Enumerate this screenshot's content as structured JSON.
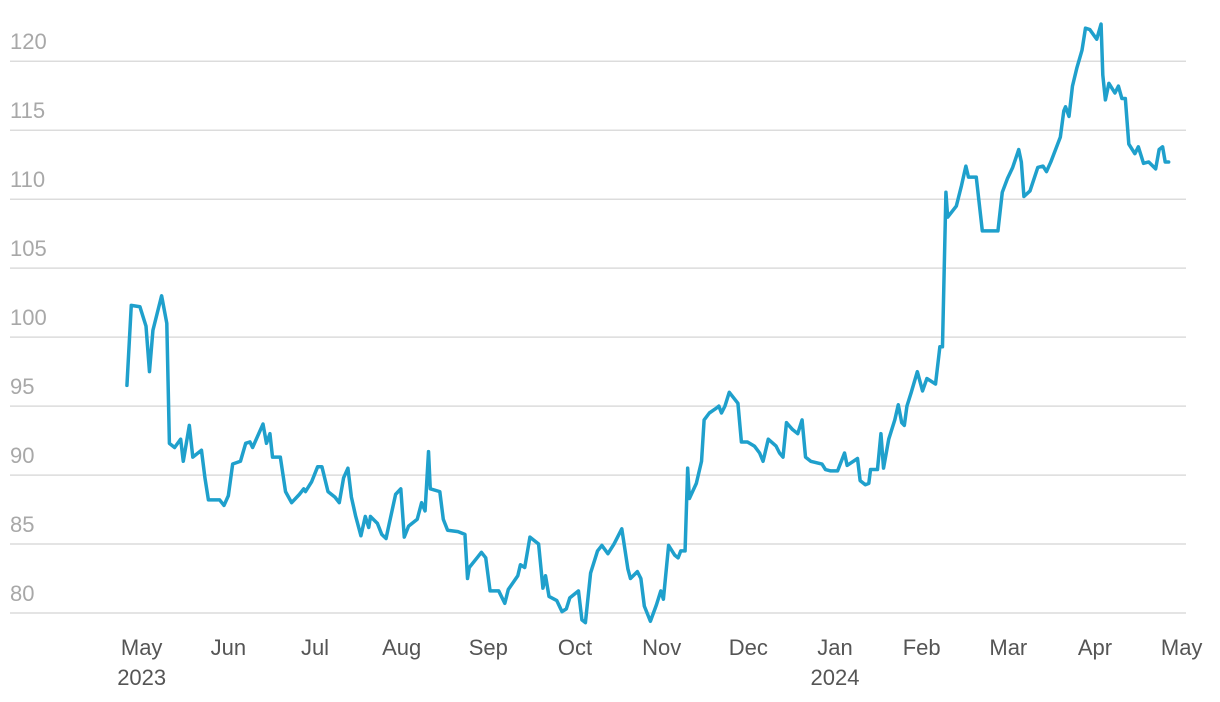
{
  "chart_data": {
    "type": "line",
    "color": "#1fa0cc",
    "grid": true,
    "xlim": [
      -0.25,
      12.05
    ],
    "ylim": [
      80,
      123.5
    ],
    "yticks": [
      80,
      85,
      90,
      95,
      100,
      105,
      110,
      115,
      120
    ],
    "xticks": [
      {
        "value": 0,
        "label": "May"
      },
      {
        "value": 1,
        "label": "Jun"
      },
      {
        "value": 2,
        "label": "Jul"
      },
      {
        "value": 3,
        "label": "Aug"
      },
      {
        "value": 4,
        "label": "Sep"
      },
      {
        "value": 5,
        "label": "Oct"
      },
      {
        "value": 6,
        "label": "Nov"
      },
      {
        "value": 7,
        "label": "Dec"
      },
      {
        "value": 8,
        "label": "Jan"
      },
      {
        "value": 9,
        "label": "Feb"
      },
      {
        "value": 10,
        "label": "Mar"
      },
      {
        "value": 11,
        "label": "Apr"
      },
      {
        "value": 12,
        "label": "May"
      }
    ],
    "year_labels": [
      {
        "value": 0,
        "label": "2023"
      },
      {
        "value": 8,
        "label": "2024"
      }
    ],
    "x": [
      -0.17,
      -0.12,
      -0.02,
      0.05,
      0.09,
      0.13,
      0.23,
      0.29,
      0.32,
      0.38,
      0.45,
      0.48,
      0.55,
      0.59,
      0.69,
      0.73,
      0.77,
      0.9,
      0.95,
      1.0,
      1.05,
      1.14,
      1.2,
      1.25,
      1.28,
      1.4,
      1.44,
      1.48,
      1.51,
      1.6,
      1.66,
      1.73,
      1.82,
      1.87,
      1.89,
      1.96,
      2.03,
      2.08,
      2.15,
      2.23,
      2.28,
      2.33,
      2.38,
      2.42,
      2.47,
      2.53,
      2.58,
      2.62,
      2.64,
      2.72,
      2.77,
      2.82,
      2.84,
      2.93,
      2.99,
      3.03,
      3.08,
      3.18,
      3.23,
      3.27,
      3.31,
      3.33,
      3.44,
      3.48,
      3.53,
      3.65,
      3.73,
      3.76,
      3.78,
      3.87,
      3.92,
      3.97,
      4.02,
      4.12,
      4.19,
      4.23,
      4.34,
      4.37,
      4.42,
      4.48,
      4.58,
      4.63,
      4.66,
      4.7,
      4.79,
      4.85,
      4.9,
      4.94,
      5.04,
      5.08,
      5.12,
      5.18,
      5.26,
      5.31,
      5.38,
      5.45,
      5.54,
      5.61,
      5.64,
      5.72,
      5.76,
      5.8,
      5.87,
      5.94,
      5.99,
      6.02,
      6.08,
      6.15,
      6.19,
      6.22,
      6.27,
      6.3,
      6.32,
      6.4,
      6.46,
      6.49,
      6.55,
      6.62,
      6.66,
      6.69,
      6.73,
      6.78,
      6.88,
      6.92,
      6.99,
      7.07,
      7.13,
      7.17,
      7.23,
      7.32,
      7.36,
      7.4,
      7.44,
      7.51,
      7.57,
      7.62,
      7.66,
      7.72,
      7.85,
      7.89,
      7.95,
      8.03,
      8.11,
      8.14,
      8.26,
      8.29,
      8.35,
      8.39,
      8.41,
      8.49,
      8.53,
      8.56,
      8.62,
      8.69,
      8.73,
      8.77,
      8.8,
      8.83,
      8.88,
      8.95,
      9.01,
      9.06,
      9.16,
      9.21,
      9.24,
      9.28,
      9.3,
      9.4,
      9.46,
      9.51,
      9.54,
      9.63,
      9.7,
      9.74,
      9.78,
      9.88,
      9.93,
      9.99,
      10.05,
      10.12,
      10.15,
      10.18,
      10.25,
      10.34,
      10.4,
      10.44,
      10.49,
      10.6,
      10.64,
      10.66,
      10.7,
      10.74,
      10.79,
      10.85,
      10.89,
      10.94,
      11.02,
      11.07,
      11.09,
      11.12,
      11.16,
      11.23,
      11.27,
      11.31,
      11.35,
      11.39,
      11.46,
      11.5,
      11.56,
      11.62,
      11.7,
      11.74,
      11.78,
      11.81,
      11.85
    ],
    "values": [
      96.5,
      102.3,
      102.2,
      100.8,
      97.5,
      100.5,
      103,
      101,
      92.3,
      92,
      92.6,
      91,
      93.6,
      91.3,
      91.8,
      89.8,
      88.2,
      88.2,
      87.8,
      88.5,
      90.8,
      91,
      92.3,
      92.4,
      92,
      93.7,
      92.3,
      93,
      91.3,
      91.3,
      88.8,
      88,
      88.6,
      89,
      88.8,
      89.5,
      90.6,
      90.6,
      88.8,
      88.4,
      88,
      89.8,
      90.5,
      88.4,
      87,
      85.6,
      87,
      86.2,
      87,
      86.5,
      85.7,
      85.4,
      86,
      88.6,
      89,
      85.5,
      86.3,
      86.8,
      88,
      87.4,
      91.7,
      89,
      88.8,
      86.8,
      86,
      85.9,
      85.7,
      82.5,
      83.3,
      84,
      84.4,
      84,
      81.6,
      81.6,
      80.7,
      81.7,
      82.7,
      83.5,
      83.3,
      85.5,
      85,
      81.8,
      82.7,
      81.2,
      80.9,
      80.1,
      80.3,
      81.1,
      81.6,
      79.5,
      79.3,
      82.9,
      84.5,
      84.9,
      84.3,
      85,
      86.1,
      83.2,
      82.5,
      83,
      82.5,
      80.5,
      79.4,
      80.6,
      81.6,
      81,
      84.9,
      84.2,
      84,
      84.5,
      84.5,
      90.5,
      88.3,
      89.4,
      91,
      94,
      94.5,
      94.8,
      95,
      94.5,
      95,
      96,
      95.2,
      92.4,
      92.4,
      92.1,
      91.6,
      91,
      92.6,
      92.1,
      91.6,
      91.3,
      93.8,
      93.3,
      93,
      94,
      91.3,
      91,
      90.8,
      90.4,
      90.3,
      90.3,
      91.6,
      90.7,
      91.2,
      89.6,
      89.3,
      89.4,
      90.4,
      90.4,
      93,
      90.5,
      92.6,
      94,
      95.1,
      93.8,
      93.6,
      95,
      96,
      97.5,
      96.1,
      97,
      96.6,
      99.3,
      99.3,
      110.5,
      108.7,
      109.5,
      111,
      112.4,
      111.6,
      111.6,
      107.7,
      107.7,
      107.7,
      107.7,
      110.5,
      111.5,
      112.3,
      113.6,
      112.7,
      110.2,
      110.6,
      112.3,
      112.4,
      112,
      112.7,
      114.5,
      116.4,
      116.7,
      116,
      118.2,
      119.5,
      120.8,
      122.4,
      122.3,
      121.6,
      122.7,
      119,
      117.2,
      118.4,
      117.7,
      118.2,
      117.3,
      117.3,
      114,
      113.3,
      113.8,
      112.6,
      112.7,
      112.2,
      113.6,
      113.8,
      112.7,
      112.7
    ]
  }
}
